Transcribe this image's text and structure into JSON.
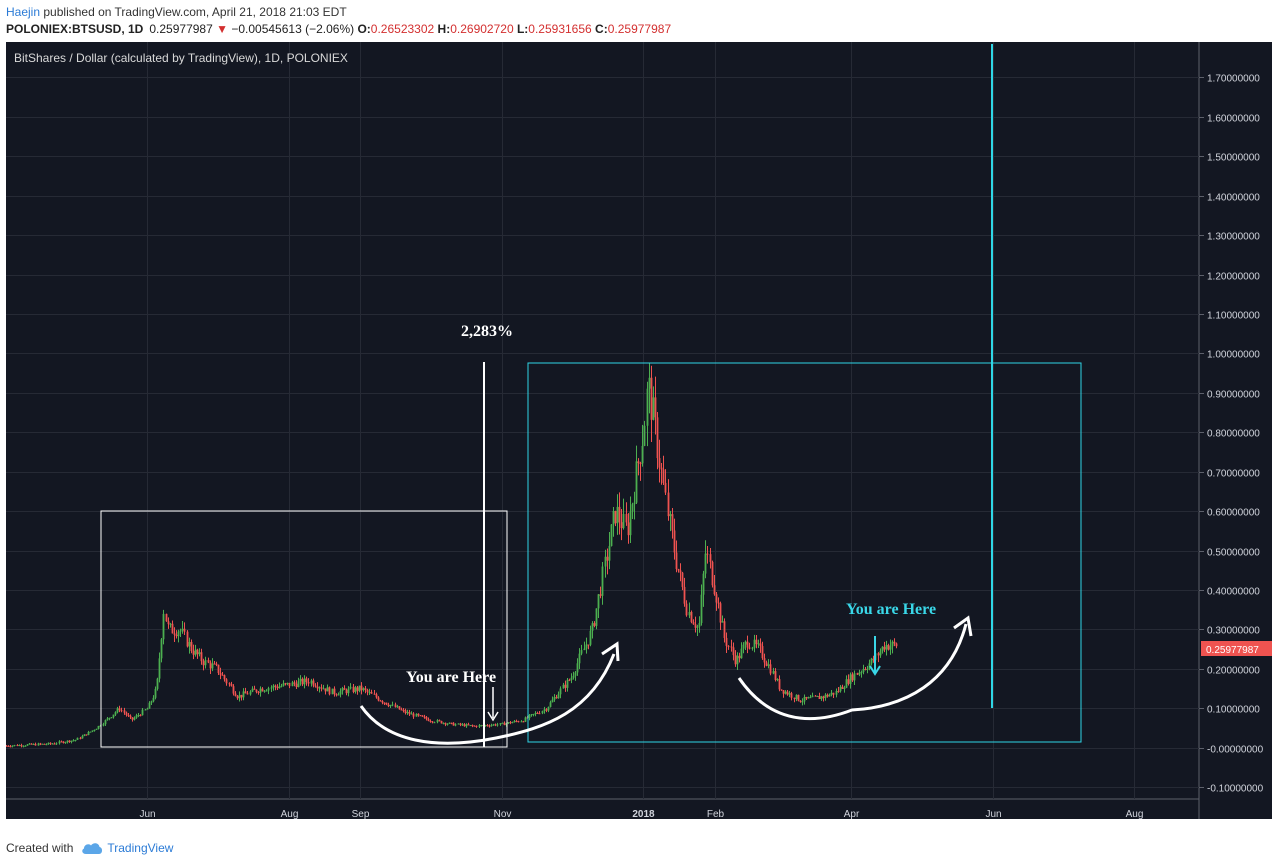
{
  "header": {
    "author": "Haejin",
    "published": "published on TradingView.com, April 21, 2018 21:03 EDT",
    "symbol": "POLONIEX:BTSUSD, 1D",
    "last": "0.25977987",
    "change_arrow": "▼",
    "change": "−0.00545613 (−2.06%)",
    "o_label": "O:",
    "o_value": "0.26523302",
    "h_label": "H:",
    "h_value": "0.26902720",
    "l_label": "L:",
    "l_value": "0.25931656",
    "c_label": "C:",
    "c_value": "0.25977987"
  },
  "chart": {
    "legend": "BitShares / Dollar (calculated by TradingView), 1D, POLONIEX",
    "price_tag": "0.25977987",
    "annotations": {
      "percent": "2,283%",
      "here_left": "You are Here",
      "here_right": "You are Here"
    },
    "colors": {
      "background": "#131722",
      "up": "#4caf50",
      "down": "#ef5350",
      "cyan": "#2fd6e6",
      "annotation_cyan": "#3ad7e8",
      "price_tag": "#ef5350"
    }
  },
  "chart_data": {
    "type": "candlestick",
    "title": "BitShares / Dollar (calculated by TradingView), 1D, POLONIEX",
    "xlabel": "",
    "ylabel": "",
    "x_ticks": [
      "Jun",
      "Aug",
      "Sep",
      "Nov",
      "2018",
      "Feb",
      "Apr",
      "Jun",
      "Aug"
    ],
    "y_ticks": [
      "1.70000000",
      "1.60000000",
      "1.50000000",
      "1.40000000",
      "1.30000000",
      "1.20000000",
      "1.10000000",
      "1.00000000",
      "0.90000000",
      "0.80000000",
      "0.70000000",
      "0.60000000",
      "0.50000000",
      "0.40000000",
      "0.30000000",
      "0.20000000",
      "0.10000000",
      "-0.00000000",
      "-0.10000000"
    ],
    "ylim": [
      -0.13,
      1.79
    ],
    "approx_close_series": {
      "x": [
        "2017-04-01",
        "2017-04-20",
        "2017-05-01",
        "2017-05-10",
        "2017-05-20",
        "2017-05-25",
        "2017-06-01",
        "2017-06-05",
        "2017-06-08",
        "2017-06-10",
        "2017-06-15",
        "2017-06-20",
        "2017-06-25",
        "2017-07-01",
        "2017-07-10",
        "2017-07-20",
        "2017-08-01",
        "2017-08-10",
        "2017-08-20",
        "2017-09-01",
        "2017-09-10",
        "2017-09-20",
        "2017-10-01",
        "2017-10-10",
        "2017-10-20",
        "2017-11-01",
        "2017-11-10",
        "2017-11-20",
        "2017-12-01",
        "2017-12-10",
        "2017-12-15",
        "2017-12-20",
        "2017-12-25",
        "2018-01-01",
        "2018-01-03",
        "2018-01-05",
        "2018-01-10",
        "2018-01-15",
        "2018-01-20",
        "2018-01-25",
        "2018-01-28",
        "2018-02-01",
        "2018-02-05",
        "2018-02-10",
        "2018-02-15",
        "2018-02-20",
        "2018-02-25",
        "2018-03-01",
        "2018-03-10",
        "2018-03-20",
        "2018-03-25",
        "2018-04-01",
        "2018-04-10",
        "2018-04-15",
        "2018-04-21"
      ],
      "close": [
        0.005,
        0.01,
        0.02,
        0.05,
        0.1,
        0.07,
        0.1,
        0.15,
        0.35,
        0.3,
        0.3,
        0.25,
        0.22,
        0.2,
        0.13,
        0.15,
        0.16,
        0.17,
        0.14,
        0.15,
        0.12,
        0.09,
        0.07,
        0.06,
        0.055,
        0.06,
        0.07,
        0.1,
        0.18,
        0.3,
        0.45,
        0.6,
        0.55,
        0.8,
        0.92,
        0.85,
        0.65,
        0.48,
        0.35,
        0.3,
        0.5,
        0.4,
        0.28,
        0.22,
        0.27,
        0.25,
        0.2,
        0.15,
        0.12,
        0.13,
        0.14,
        0.18,
        0.22,
        0.26,
        0.26
      ]
    }
  }
}
